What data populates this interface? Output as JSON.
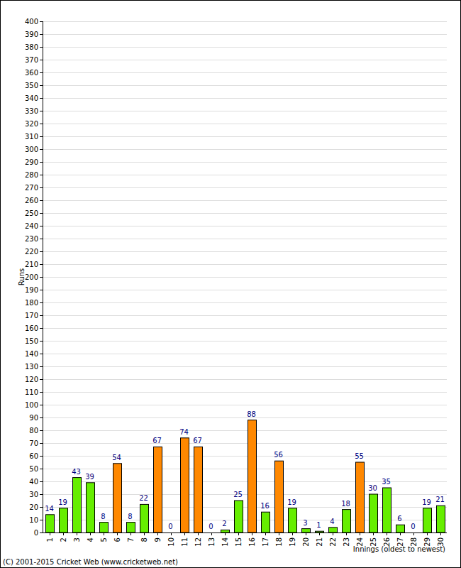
{
  "chart_data": {
    "type": "bar",
    "y_label": "Runs",
    "x_label": "Innings (oldest to newest)",
    "annotations": [
      "(C) 2001-2015 Cricket Web (www.cricketweb.net)"
    ],
    "categories": [
      "1",
      "2",
      "3",
      "4",
      "5",
      "6",
      "7",
      "8",
      "9",
      "10",
      "11",
      "12",
      "13",
      "14",
      "15",
      "16",
      "17",
      "18",
      "19",
      "20",
      "21",
      "22",
      "23",
      "24",
      "25",
      "26",
      "27",
      "28",
      "29",
      "30"
    ],
    "values": [
      14,
      19,
      43,
      39,
      8,
      54,
      8,
      22,
      67,
      0,
      74,
      67,
      0,
      2,
      25,
      88,
      16,
      56,
      19,
      3,
      1,
      4,
      18,
      55,
      30,
      35,
      6,
      0,
      19,
      21
    ],
    "colors": [
      "#66ee00",
      "#66ee00",
      "#66ee00",
      "#66ee00",
      "#66ee00",
      "#ff8800",
      "#66ee00",
      "#66ee00",
      "#ff8800",
      "#66ee00",
      "#ff8800",
      "#ff8800",
      "#66ee00",
      "#66ee00",
      "#66ee00",
      "#ff8800",
      "#66ee00",
      "#ff8800",
      "#66ee00",
      "#66ee00",
      "#66ee00",
      "#66ee00",
      "#66ee00",
      "#ff8800",
      "#66ee00",
      "#66ee00",
      "#66ee00",
      "#66ee00",
      "#66ee00",
      "#66ee00"
    ],
    "ylim": [
      0,
      400
    ],
    "yticks": [
      0,
      10,
      20,
      30,
      40,
      50,
      60,
      70,
      80,
      90,
      100,
      110,
      120,
      130,
      140,
      150,
      160,
      170,
      180,
      190,
      200,
      210,
      220,
      230,
      240,
      250,
      260,
      270,
      280,
      290,
      300,
      310,
      320,
      330,
      340,
      350,
      360,
      370,
      380,
      390,
      400
    ],
    "grid": true,
    "data_labels": true
  }
}
